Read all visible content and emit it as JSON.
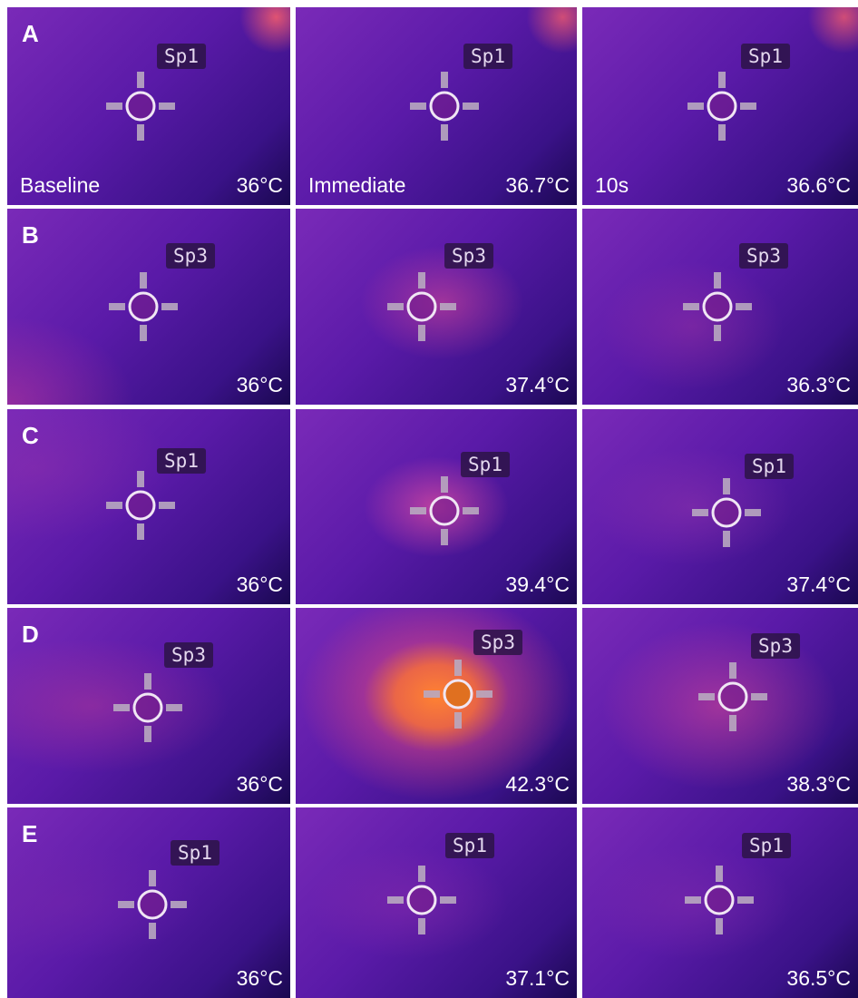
{
  "rows": [
    {
      "label": "A",
      "panels": [
        {
          "spot": "Sp1",
          "condition": "Baseline",
          "temperature": "36°C"
        },
        {
          "spot": "Sp1",
          "condition": "Immediate",
          "temperature": "36.7°C"
        },
        {
          "spot": "Sp1",
          "condition": "10s",
          "temperature": "36.6°C"
        }
      ]
    },
    {
      "label": "B",
      "panels": [
        {
          "spot": "Sp3",
          "temperature": "36°C"
        },
        {
          "spot": "Sp3",
          "temperature": "37.4°C"
        },
        {
          "spot": "Sp3",
          "temperature": "36.3°C"
        }
      ]
    },
    {
      "label": "C",
      "panels": [
        {
          "spot": "Sp1",
          "temperature": "36°C"
        },
        {
          "spot": "Sp1",
          "temperature": "39.4°C"
        },
        {
          "spot": "Sp1",
          "temperature": "37.4°C"
        }
      ]
    },
    {
      "label": "D",
      "panels": [
        {
          "spot": "Sp3",
          "temperature": "36°C"
        },
        {
          "spot": "Sp3",
          "temperature": "42.3°C"
        },
        {
          "spot": "Sp3",
          "temperature": "38.3°C"
        }
      ]
    },
    {
      "label": "E",
      "panels": [
        {
          "spot": "Sp1",
          "temperature": "36°C"
        },
        {
          "spot": "Sp1",
          "temperature": "37.1°C"
        },
        {
          "spot": "Sp1",
          "temperature": "36.5°C"
        }
      ]
    }
  ]
}
